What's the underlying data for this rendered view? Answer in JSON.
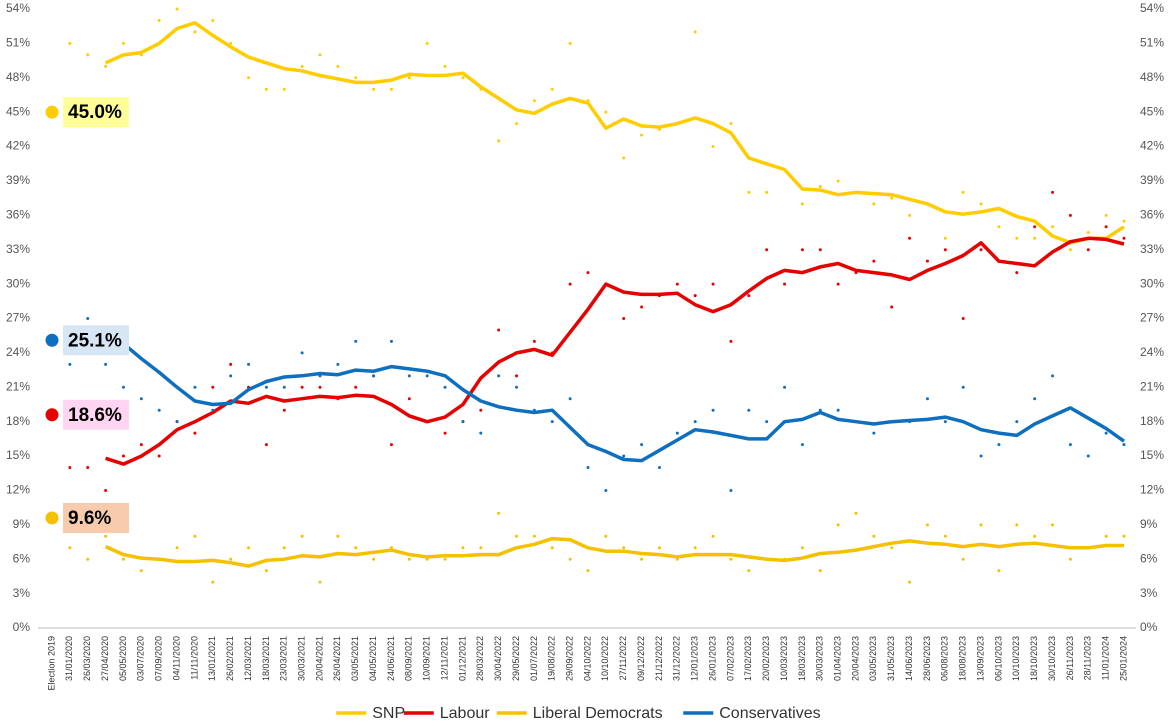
{
  "chart_data": {
    "type": "line",
    "categories": [
      "Election 2019",
      "31/01/2020",
      "26/03/2020",
      "27/04/2020",
      "05/05/2020",
      "03/07/2020",
      "07/09/2020",
      "04/11/2020",
      "11/11/2020",
      "13/01/2021",
      "26/02/2021",
      "12/03/2021",
      "18/03/2021",
      "23/03/2021",
      "30/03/2021",
      "20/04/2021",
      "26/04/2021",
      "03/05/2021",
      "04/05/2021",
      "24/06/2021",
      "08/09/2021",
      "10/09/2021",
      "12/11/2021",
      "01/12/2021",
      "28/03/2022",
      "30/04/2022",
      "29/05/2022",
      "01/07/2022",
      "19/08/2022",
      "29/09/2022",
      "04/10/2022",
      "10/10/2022",
      "27/11/2022",
      "09/12/2022",
      "21/12/2022",
      "31/12/2022",
      "12/01/2023",
      "26/01/2023",
      "07/02/2023",
      "17/02/2023",
      "20/02/2023",
      "10/03/2023",
      "18/03/2023",
      "30/03/2023",
      "01/04/2023",
      "20/04/2023",
      "03/05/2023",
      "31/05/2023",
      "14/06/2023",
      "28/06/2023",
      "06/08/2023",
      "18/08/2023",
      "13/09/2023",
      "06/10/2023",
      "10/10/2023",
      "18/10/2023",
      "30/10/2023",
      "26/11/2023",
      "28/11/2023",
      "11/01/2024",
      "25/01/2024"
    ],
    "ylim": [
      0,
      54
    ],
    "yticks": [
      {
        "value": 0,
        "label": "0%"
      },
      {
        "value": 3,
        "label": "3%"
      },
      {
        "value": 6,
        "label": "6%"
      },
      {
        "value": 9,
        "label": "9%"
      },
      {
        "value": 12,
        "label": "12%"
      },
      {
        "value": 15,
        "label": "15%"
      },
      {
        "value": 18,
        "label": "18%"
      },
      {
        "value": 21,
        "label": "21%"
      },
      {
        "value": 24,
        "label": "24%"
      },
      {
        "value": 27,
        "label": "27%"
      },
      {
        "value": 30,
        "label": "30%"
      },
      {
        "value": 33,
        "label": "33%"
      },
      {
        "value": 36,
        "label": "36%"
      },
      {
        "value": 39,
        "label": "39%"
      },
      {
        "value": 42,
        "label": "42%"
      },
      {
        "value": 45,
        "label": "45%"
      },
      {
        "value": 48,
        "label": "48%"
      },
      {
        "value": 51,
        "label": "51%"
      },
      {
        "value": 54,
        "label": "54%"
      }
    ],
    "grid": false,
    "legend": "bottom",
    "series": [
      {
        "name": "SNP",
        "color": "#ffcc00",
        "label_background": "#ffff99",
        "values": [
          45.0,
          null,
          null,
          49.3,
          50.0,
          50.2,
          51.0,
          52.3,
          52.8,
          51.7,
          50.7,
          49.8,
          49.3,
          48.8,
          48.6,
          48.2,
          47.9,
          47.6,
          47.6,
          47.8,
          48.3,
          48.2,
          48.2,
          48.4,
          47.2,
          46.2,
          45.2,
          44.9,
          45.7,
          46.2,
          45.8,
          43.6,
          44.4,
          43.8,
          43.7,
          44.0,
          44.5,
          44.0,
          43.2,
          41.0,
          40.5,
          40.0,
          38.3,
          38.2,
          37.8,
          38.0,
          37.9,
          37.8,
          37.4,
          37.0,
          36.3,
          36.1,
          36.3,
          36.6,
          35.9,
          35.5,
          34.2,
          33.6,
          34.0,
          34.0,
          35.0
        ],
        "value_labels": [
          "45.0%",
          null,
          null,
          null,
          null,
          null,
          null,
          null,
          null,
          null,
          null,
          null,
          null,
          null,
          null,
          null,
          null,
          null,
          null,
          null,
          null,
          null,
          null,
          null,
          null,
          null,
          null,
          null,
          null,
          null,
          null,
          null,
          null,
          null,
          null,
          null,
          null,
          null,
          null,
          null,
          null,
          null,
          null,
          null,
          null,
          null,
          null,
          null,
          null,
          null,
          null,
          null,
          null,
          null,
          null,
          null,
          null,
          null,
          null,
          null,
          null
        ],
        "polls": [
          null,
          51,
          50,
          49,
          51,
          50,
          53,
          54,
          52,
          53,
          51,
          48,
          47,
          47,
          49,
          50,
          49,
          48,
          47,
          47,
          48,
          51,
          49,
          48,
          47,
          42.5,
          44,
          46,
          47,
          51,
          46,
          45,
          41,
          43,
          43.5,
          44,
          52,
          42,
          44,
          38,
          38,
          40,
          37,
          38.5,
          39,
          38,
          37,
          37.5,
          36,
          37,
          34,
          38,
          37,
          35,
          34,
          34,
          35,
          33,
          34.5,
          36,
          35.5
        ]
      },
      {
        "name": "Labour",
        "color": "#e60000",
        "label_background": "#ffd5f2",
        "values": [
          18.6,
          null,
          null,
          14.8,
          14.3,
          15.0,
          16.0,
          17.3,
          18.0,
          18.8,
          19.8,
          19.6,
          20.2,
          19.8,
          20.0,
          20.2,
          20.1,
          20.3,
          20.2,
          19.5,
          18.5,
          18.0,
          18.4,
          19.5,
          21.8,
          23.2,
          24.0,
          24.3,
          23.8,
          25.8,
          27.8,
          30.0,
          29.3,
          29.1,
          29.1,
          29.2,
          28.2,
          27.6,
          28.2,
          29.4,
          30.5,
          31.2,
          31.0,
          31.5,
          31.8,
          31.2,
          31.0,
          30.8,
          30.4,
          31.2,
          31.8,
          32.5,
          33.6,
          32.0,
          31.8,
          31.6,
          32.8,
          33.7,
          34.0,
          33.9,
          33.5
        ],
        "value_labels": [
          "18.6%",
          null,
          null,
          null,
          null,
          null,
          null,
          null,
          null,
          null,
          null,
          null,
          null,
          null,
          null,
          null,
          null,
          null,
          null,
          null,
          null,
          null,
          null,
          null,
          null,
          null,
          null,
          null,
          null,
          null,
          null,
          null,
          null,
          null,
          null,
          null,
          null,
          null,
          null,
          null,
          null,
          null,
          null,
          null,
          null,
          null,
          null,
          null,
          null,
          null,
          null,
          null,
          null,
          null,
          null,
          null,
          null,
          null,
          null,
          null,
          null
        ],
        "polls": [
          null,
          14,
          14,
          12,
          15,
          16,
          15,
          18,
          17,
          21,
          23,
          21,
          16,
          19,
          21,
          21,
          20,
          21,
          22,
          16,
          20,
          18,
          17,
          18,
          19,
          26,
          22,
          25,
          24,
          30,
          31,
          30,
          27,
          28,
          29,
          30,
          29,
          30,
          25,
          29,
          33,
          30,
          33,
          33,
          30,
          31,
          32,
          28,
          34,
          32,
          33,
          27,
          33,
          32,
          31,
          35,
          38,
          36,
          33,
          35,
          34
        ]
      },
      {
        "name": "Liberal Democrats",
        "color": "#f5c000",
        "label_background": "#f8cbad",
        "values": [
          9.6,
          null,
          null,
          7.1,
          6.4,
          6.1,
          6.0,
          5.8,
          5.8,
          5.9,
          5.7,
          5.4,
          5.9,
          6.0,
          6.3,
          6.2,
          6.5,
          6.4,
          6.6,
          6.8,
          6.4,
          6.2,
          6.3,
          6.3,
          6.4,
          6.4,
          7.0,
          7.3,
          7.8,
          7.7,
          7.0,
          6.7,
          6.7,
          6.5,
          6.4,
          6.2,
          6.4,
          6.4,
          6.4,
          6.2,
          6.0,
          5.9,
          6.1,
          6.5,
          6.6,
          6.8,
          7.1,
          7.4,
          7.6,
          7.4,
          7.3,
          7.1,
          7.3,
          7.1,
          7.3,
          7.4,
          7.2,
          7.0,
          7.0,
          7.2,
          7.2
        ],
        "value_labels": [
          "9.6%",
          null,
          null,
          null,
          null,
          null,
          null,
          null,
          null,
          null,
          null,
          null,
          null,
          null,
          null,
          null,
          null,
          null,
          null,
          null,
          null,
          null,
          null,
          null,
          null,
          null,
          null,
          null,
          null,
          null,
          null,
          null,
          null,
          null,
          null,
          null,
          null,
          null,
          null,
          null,
          null,
          null,
          null,
          null,
          null,
          null,
          null,
          null,
          null,
          null,
          null,
          null,
          null,
          null,
          null,
          null,
          null,
          null,
          null,
          null,
          null
        ],
        "polls": [
          null,
          7,
          6,
          8,
          6,
          5,
          6,
          7,
          8,
          4,
          6,
          7,
          5,
          7,
          8,
          4,
          8,
          7,
          6,
          7,
          6,
          6,
          6,
          7,
          7,
          10,
          8,
          8,
          7,
          6,
          5,
          8,
          7,
          6,
          7,
          6,
          7,
          8,
          6,
          5,
          6,
          6,
          7,
          5,
          9,
          10,
          8,
          7,
          4,
          9,
          8,
          6,
          9,
          5,
          9,
          8,
          9,
          6,
          7,
          8,
          8
        ]
      },
      {
        "name": "Conservatives",
        "color": "#0f6fbf",
        "label_background": "#d6e6f4",
        "values": [
          25.1,
          null,
          null,
          25.3,
          24.8,
          23.5,
          22.3,
          21.0,
          19.8,
          19.5,
          19.6,
          20.8,
          21.5,
          21.9,
          22.0,
          22.2,
          22.1,
          22.5,
          22.4,
          22.8,
          22.6,
          22.4,
          22.0,
          20.8,
          19.8,
          19.3,
          19.0,
          18.8,
          19.0,
          17.5,
          16.0,
          15.4,
          14.7,
          14.6,
          15.5,
          16.4,
          17.3,
          17.1,
          16.8,
          16.5,
          16.5,
          18.0,
          18.2,
          18.8,
          18.2,
          18.0,
          17.8,
          18.0,
          18.1,
          18.2,
          18.4,
          18.0,
          17.3,
          17.0,
          16.8,
          17.8,
          18.5,
          19.2,
          18.3,
          17.4,
          16.3
        ],
        "value_labels": [
          "25.1%",
          null,
          null,
          null,
          null,
          null,
          null,
          null,
          null,
          null,
          null,
          null,
          null,
          null,
          null,
          null,
          null,
          null,
          null,
          null,
          null,
          null,
          null,
          null,
          null,
          null,
          null,
          null,
          null,
          null,
          null,
          null,
          null,
          null,
          null,
          null,
          null,
          null,
          null,
          null,
          null,
          null,
          null,
          null,
          null,
          null,
          null,
          null,
          null,
          null,
          null,
          null,
          null,
          null,
          null,
          null,
          null,
          null,
          null,
          null,
          null
        ],
        "polls": [
          null,
          23,
          27,
          23,
          21,
          20,
          19,
          18,
          21,
          19,
          22,
          23,
          21,
          21,
          24,
          22,
          23,
          25,
          22,
          25,
          22,
          22,
          21,
          18,
          17,
          22,
          21,
          19,
          18,
          20,
          14,
          12,
          15,
          16,
          14,
          17,
          18,
          19,
          12,
          19,
          18,
          21,
          16,
          19,
          19,
          18,
          17,
          18,
          18,
          20,
          18,
          21,
          15,
          16,
          18,
          20,
          22,
          16,
          15,
          17,
          16
        ]
      }
    ]
  }
}
